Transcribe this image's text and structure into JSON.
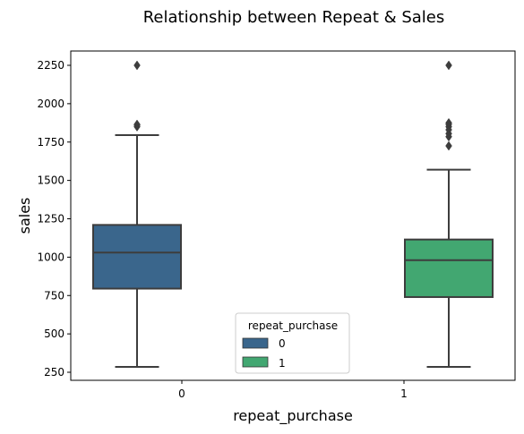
{
  "chart_data": {
    "type": "box",
    "title": "Relationship between Repeat & Sales",
    "xlabel": "repeat_purchase",
    "ylabel": "sales",
    "categories": [
      "0",
      "1"
    ],
    "yticks": [
      "250",
      "500",
      "750",
      "1000",
      "1250",
      "1500",
      "1750",
      "2000",
      "2250"
    ],
    "ylim": [
      200,
      2370
    ],
    "grid": false,
    "legend": {
      "title": "repeat_purchase",
      "placement": "lower-center",
      "entries": [
        "0",
        "1"
      ]
    },
    "series": [
      {
        "name": "0",
        "color": "#3a668c",
        "whisker_low": 285,
        "q1": 795,
        "median": 1030,
        "q3": 1210,
        "whisker_high": 1795,
        "outliers": [
          1850,
          1860,
          1865,
          2250
        ]
      },
      {
        "name": "1",
        "color": "#42a771",
        "whisker_low": 285,
        "q1": 740,
        "median": 980,
        "q3": 1115,
        "whisker_high": 1570,
        "outliers": [
          1725,
          1785,
          1805,
          1830,
          1850,
          1865,
          1875,
          2250
        ]
      }
    ]
  }
}
